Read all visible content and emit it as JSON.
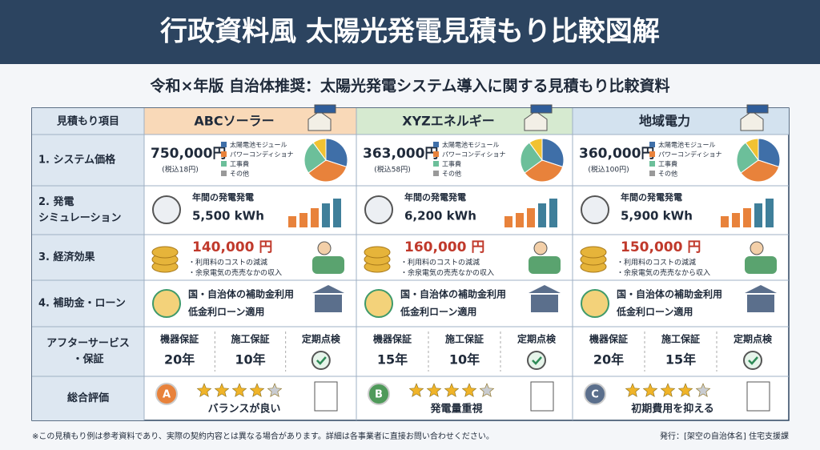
{
  "title": "行政資料風 太陽光発電見積もり比較図解",
  "subtitle": "令和×年版 自治体推奨：太陽光発電システム導入に関する見積もり比較資料",
  "table": {
    "item_header": "見積もり項目",
    "row_labels": [
      [
        "1. システム価格"
      ],
      [
        "2. 発電",
        "シミュレーション"
      ],
      [
        "3. 経済効果"
      ],
      [
        "4. 補助金・ローン"
      ],
      [
        "アフターサービス",
        "・保証"
      ],
      [
        "総合評価"
      ]
    ],
    "cost_legend": [
      "太陽電池モジュール",
      "パワーコンディショナ",
      "工事費",
      "その他"
    ],
    "subsidy_lines": [
      "国・自治体の補助金利用",
      "低金利ローン適用"
    ],
    "aftercare_labels": [
      "機器保証",
      "施工保証",
      "定期点検"
    ],
    "companies": [
      {
        "name": "ABCソーラー",
        "price": "750,000円",
        "tax": "(税込18円)",
        "generation_label": "年間の発電発電",
        "generation": "5,500 kWh",
        "saving": "140,000 円",
        "saving_notes": [
          "・利用料のコストの減減",
          "・余泉電気の売売なかの収入"
        ],
        "warranty": [
          "20年",
          "10年"
        ],
        "grade": "A",
        "stars": 4,
        "comment": "バランスが良い"
      },
      {
        "name": "XYZエネルギー",
        "price": "363,000円",
        "tax": "(税込58円)",
        "generation_label": "年間の発電発電",
        "generation": "6,200 kWh",
        "saving": "160,000 円",
        "saving_notes": [
          "・利用料のコストの減減",
          "・余泉電気の売売なかの収入"
        ],
        "warranty": [
          "15年",
          "10年"
        ],
        "grade": "B",
        "stars": 4,
        "comment": "発電量重視"
      },
      {
        "name": "地域電力",
        "price": "360,000円",
        "tax": "(税込100円)",
        "generation_label": "年間の発電発電",
        "generation": "5,900 kWh",
        "saving": "150,000 円",
        "saving_notes": [
          "・利用料のコストの減減",
          "・余泉電気の売売なから収入"
        ],
        "warranty": [
          "20年",
          "15年"
        ],
        "grade": "C",
        "stars": 4,
        "comment": "初期費用を抑える"
      }
    ]
  },
  "footer": {
    "note": "※この見積もり例は参考資料であり、実際の契約内容とは異なる場合があります。詳細は各事業者に直接お問い合わせください。",
    "publisher": "発行：[架空の自治体名] 住宅支援課"
  }
}
